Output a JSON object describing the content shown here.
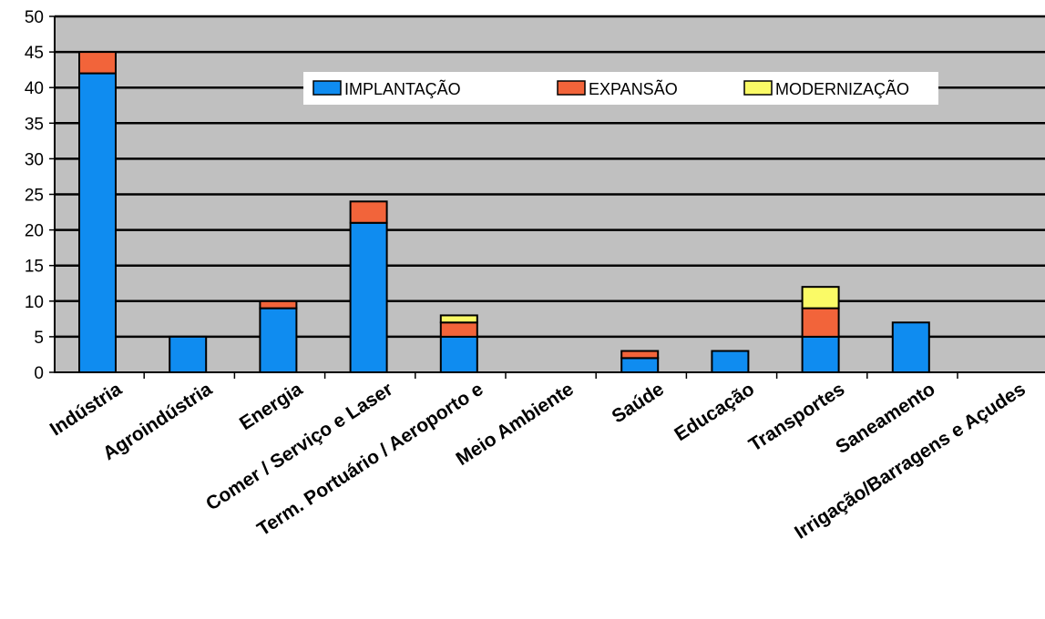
{
  "chart_data": {
    "type": "bar",
    "stacked": true,
    "title": "",
    "xlabel": "",
    "ylabel": "",
    "ylim": [
      0,
      50
    ],
    "yticks": [
      0,
      5,
      10,
      15,
      20,
      25,
      30,
      35,
      40,
      45,
      50
    ],
    "grid": true,
    "legend_position": "top-center",
    "categories": [
      "Indústria",
      "Agroindústria",
      "Energia",
      "Comer / Serviço e Laser",
      "Term. Portuário / Aeroporto e",
      "Meio Ambiente",
      "Saúde",
      "Educação",
      "Transportes",
      "Saneamento",
      "Irrigação/Barragens e Açudes"
    ],
    "series": [
      {
        "name": "IMPLANTAÇÃO",
        "color": "#0F8CF0",
        "values": [
          42,
          5,
          9,
          21,
          5,
          0,
          2,
          3,
          5,
          7,
          0
        ]
      },
      {
        "name": "EXPANSÃO",
        "color": "#F2643A",
        "values": [
          3,
          0,
          1,
          3,
          2,
          0,
          1,
          0,
          4,
          0,
          0
        ]
      },
      {
        "name": "MODERNIZAÇÃO",
        "color": "#FAFA66",
        "values": [
          0,
          0,
          0,
          0,
          1,
          0,
          0,
          0,
          3,
          0,
          0
        ]
      }
    ],
    "plot_background": "#C0C0C0"
  }
}
